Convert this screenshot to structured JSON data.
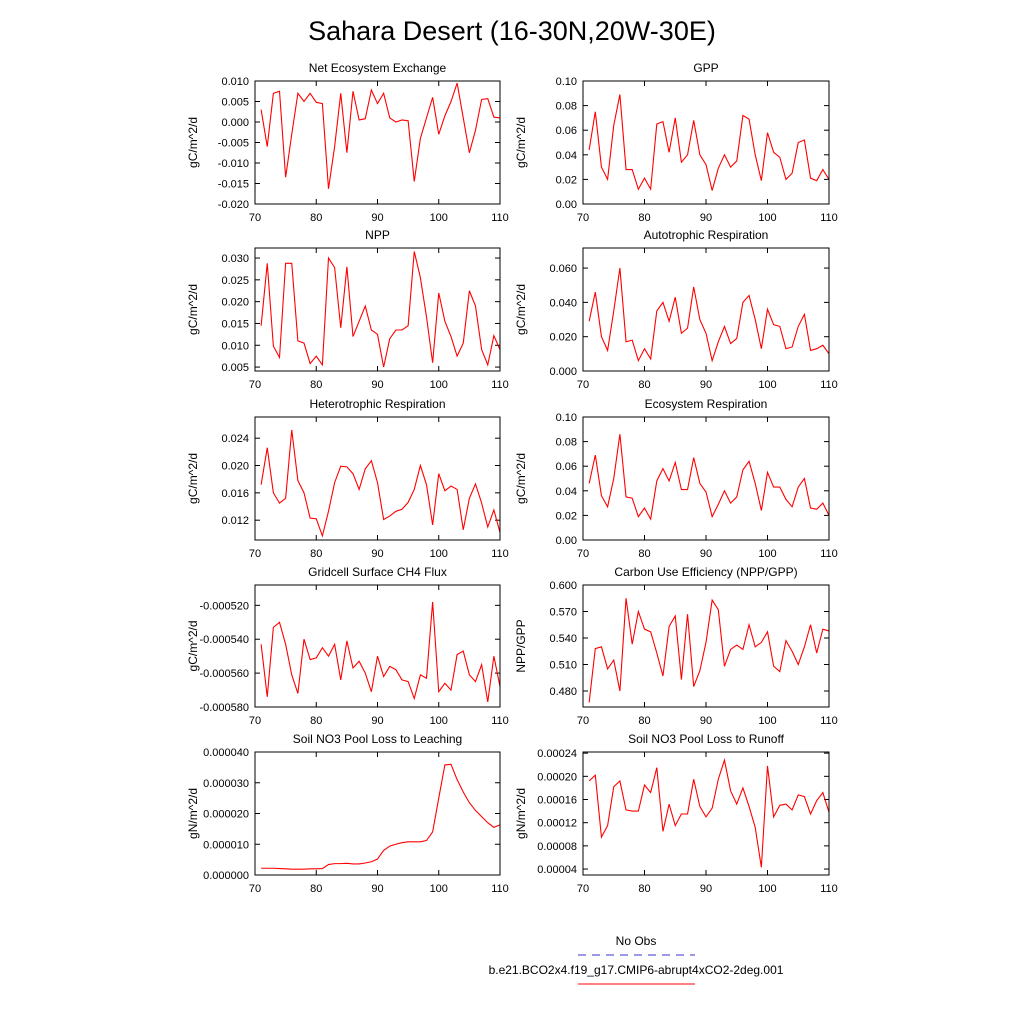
{
  "title": "Sahara Desert (16-30N,20W-30E)",
  "legend": [
    {
      "name": "No Obs",
      "color": "#3333cc",
      "dashed": true
    },
    {
      "name": "b.e21.BCO2x4.f19_g17.CMIP6-abrupt4xCO2-2deg.001",
      "color": "#ff0000",
      "dashed": false
    }
  ],
  "chart_data": [
    {
      "type": "line",
      "title": "Net Ecosystem Exchange",
      "ylabel": "gC/m^2/d",
      "color": "#ff0000",
      "x": [
        71,
        72,
        73,
        74,
        75,
        76,
        77,
        78,
        79,
        80,
        81,
        82,
        83,
        84,
        85,
        86,
        87,
        88,
        89,
        90,
        91,
        92,
        93,
        94,
        95,
        96,
        97,
        98,
        99,
        100,
        101,
        102,
        103,
        104,
        105,
        106,
        107,
        108,
        109,
        110
      ],
      "values": [
        0.003,
        -0.006,
        0.007,
        0.0075,
        -0.0135,
        -0.003,
        0.007,
        0.005,
        0.007,
        0.0048,
        0.0045,
        -0.0163,
        -0.006,
        0.007,
        -0.0075,
        0.0075,
        0.0005,
        0.0008,
        0.0078,
        0.0045,
        0.007,
        0.001,
        0.0,
        0.0005,
        0.0003,
        -0.0145,
        -0.004,
        0.001,
        0.006,
        -0.003,
        0.0015,
        0.005,
        0.0095,
        0.001,
        -0.0075,
        -0.002,
        0.0055,
        0.0057,
        0.0012,
        0.001
      ],
      "xlim": [
        70,
        110
      ],
      "xticks": [
        70,
        80,
        90,
        100,
        110
      ],
      "ylim": [
        -0.02,
        0.01
      ],
      "yticks": [
        {
          "value": -0.02,
          "label": "-0.020"
        },
        -0.015,
        {
          "value": -0.01,
          "label": "-0.010"
        },
        -0.005,
        {
          "value": 0,
          "label": "0.000"
        },
        0.005,
        {
          "value": 0.01,
          "label": "0.010"
        }
      ]
    },
    {
      "type": "line",
      "title": "GPP",
      "ylabel": "gC/m^2/d",
      "color": "#ff0000",
      "x": [
        71,
        72,
        73,
        74,
        75,
        76,
        77,
        78,
        79,
        80,
        81,
        82,
        83,
        84,
        85,
        86,
        87,
        88,
        89,
        90,
        91,
        92,
        93,
        94,
        95,
        96,
        97,
        98,
        99,
        100,
        101,
        102,
        103,
        104,
        105,
        106,
        107,
        108,
        109,
        110
      ],
      "values": [
        0.044,
        0.075,
        0.03,
        0.02,
        0.064,
        0.089,
        0.028,
        0.028,
        0.012,
        0.021,
        0.012,
        0.065,
        0.067,
        0.042,
        0.07,
        0.034,
        0.04,
        0.068,
        0.04,
        0.032,
        0.011,
        0.029,
        0.04,
        0.03,
        0.035,
        0.072,
        0.069,
        0.04,
        0.019,
        0.058,
        0.042,
        0.038,
        0.02,
        0.025,
        0.05,
        0.052,
        0.021,
        0.019,
        0.028,
        0.02
      ],
      "xlim": [
        70,
        110
      ],
      "xticks": [
        70,
        80,
        90,
        100,
        110
      ],
      "ylim": [
        0,
        0.1
      ],
      "yticks": [
        {
          "value": 0,
          "label": "0.00"
        },
        0.02,
        0.04,
        0.06,
        0.08,
        {
          "value": 0.1,
          "label": "0.10"
        }
      ]
    },
    {
      "type": "line",
      "title": "NPP",
      "ylabel": "gC/m^2/d",
      "color": "#ff0000",
      "x": [
        71,
        72,
        73,
        74,
        75,
        76,
        77,
        78,
        79,
        80,
        81,
        82,
        83,
        84,
        85,
        86,
        87,
        88,
        89,
        90,
        91,
        92,
        93,
        94,
        95,
        96,
        97,
        98,
        99,
        100,
        101,
        102,
        103,
        104,
        105,
        106,
        107,
        108,
        109,
        110
      ],
      "values": [
        0.0145,
        0.0288,
        0.0098,
        0.0072,
        0.0288,
        0.0288,
        0.011,
        0.0105,
        0.0058,
        0.0075,
        0.0055,
        0.03,
        0.0278,
        0.014,
        0.028,
        0.012,
        0.0155,
        0.019,
        0.0135,
        0.0125,
        0.005,
        0.0115,
        0.0135,
        0.0135,
        0.0145,
        0.0315,
        0.0255,
        0.0165,
        0.006,
        0.022,
        0.0155,
        0.012,
        0.0075,
        0.0105,
        0.0225,
        0.019,
        0.009,
        0.0055,
        0.0122,
        0.009
      ],
      "xlim": [
        70,
        110
      ],
      "xticks": [
        70,
        80,
        90,
        100,
        110
      ],
      "ylim": [
        0.0041,
        0.0323
      ],
      "yticks": [
        0.005,
        {
          "value": 0.01,
          "label": "0.010"
        },
        0.015,
        {
          "value": 0.02,
          "label": "0.020"
        },
        0.025,
        {
          "value": 0.03,
          "label": "0.030"
        }
      ]
    },
    {
      "type": "line",
      "title": "Autotrophic Respiration",
      "ylabel": "gC/m^2/d",
      "color": "#ff0000",
      "x": [
        71,
        72,
        73,
        74,
        75,
        76,
        77,
        78,
        79,
        80,
        81,
        82,
        83,
        84,
        85,
        86,
        87,
        88,
        89,
        90,
        91,
        92,
        93,
        94,
        95,
        96,
        97,
        98,
        99,
        100,
        101,
        102,
        103,
        104,
        105,
        106,
        107,
        108,
        109,
        110
      ],
      "values": [
        0.029,
        0.046,
        0.02,
        0.012,
        0.035,
        0.06,
        0.017,
        0.018,
        0.006,
        0.013,
        0.007,
        0.035,
        0.04,
        0.029,
        0.043,
        0.022,
        0.025,
        0.049,
        0.03,
        0.022,
        0.006,
        0.017,
        0.026,
        0.016,
        0.019,
        0.04,
        0.044,
        0.03,
        0.013,
        0.036,
        0.027,
        0.026,
        0.013,
        0.014,
        0.026,
        0.033,
        0.012,
        0.013,
        0.015,
        0.01
      ],
      "xlim": [
        70,
        110
      ],
      "xticks": [
        70,
        80,
        90,
        100,
        110
      ],
      "ylim": [
        0,
        0.0717
      ],
      "yticks": [
        {
          "value": 0,
          "label": "0.000"
        },
        {
          "value": 0.02,
          "label": "0.020"
        },
        {
          "value": 0.04,
          "label": "0.040"
        },
        {
          "value": 0.06,
          "label": "0.060"
        }
      ]
    },
    {
      "type": "line",
      "title": "Heterotrophic Respiration",
      "ylabel": "gC/m^2/d",
      "color": "#ff0000",
      "x": [
        71,
        72,
        73,
        74,
        75,
        76,
        77,
        78,
        79,
        80,
        81,
        82,
        83,
        84,
        85,
        86,
        87,
        88,
        89,
        90,
        91,
        92,
        93,
        94,
        95,
        96,
        97,
        98,
        99,
        100,
        101,
        102,
        103,
        104,
        105,
        106,
        107,
        108,
        109,
        110
      ],
      "values": [
        0.0172,
        0.0226,
        0.016,
        0.0145,
        0.0152,
        0.0252,
        0.0178,
        0.016,
        0.0123,
        0.0122,
        0.0097,
        0.0133,
        0.0175,
        0.0199,
        0.0198,
        0.0188,
        0.0165,
        0.0195,
        0.0207,
        0.0175,
        0.0121,
        0.0126,
        0.0133,
        0.0136,
        0.0146,
        0.0165,
        0.02,
        0.0172,
        0.0113,
        0.0188,
        0.0163,
        0.017,
        0.0165,
        0.0106,
        0.0152,
        0.0173,
        0.0145,
        0.011,
        0.0135,
        0.0102
      ],
      "xlim": [
        70,
        110
      ],
      "xticks": [
        70,
        80,
        90,
        100,
        110
      ],
      "ylim": [
        0.0091,
        0.0271
      ],
      "yticks": [
        0.012,
        0.016,
        {
          "value": 0.02,
          "label": "0.020"
        },
        0.024
      ]
    },
    {
      "type": "line",
      "title": "Ecosystem Respiration",
      "ylabel": "gC/m^2/d",
      "color": "#ff0000",
      "x": [
        71,
        72,
        73,
        74,
        75,
        76,
        77,
        78,
        79,
        80,
        81,
        82,
        83,
        84,
        85,
        86,
        87,
        88,
        89,
        90,
        91,
        92,
        93,
        94,
        95,
        96,
        97,
        98,
        99,
        100,
        101,
        102,
        103,
        104,
        105,
        106,
        107,
        108,
        109,
        110
      ],
      "values": [
        0.046,
        0.069,
        0.036,
        0.027,
        0.05,
        0.086,
        0.035,
        0.034,
        0.019,
        0.026,
        0.017,
        0.048,
        0.058,
        0.048,
        0.063,
        0.041,
        0.041,
        0.067,
        0.046,
        0.039,
        0.019,
        0.029,
        0.04,
        0.03,
        0.035,
        0.057,
        0.064,
        0.046,
        0.024,
        0.055,
        0.043,
        0.043,
        0.033,
        0.027,
        0.043,
        0.05,
        0.026,
        0.025,
        0.03,
        0.02
      ],
      "xlim": [
        70,
        110
      ],
      "xticks": [
        70,
        80,
        90,
        100,
        110
      ],
      "ylim": [
        0,
        0.1
      ],
      "yticks": [
        {
          "value": 0,
          "label": "0.00"
        },
        0.02,
        0.04,
        0.06,
        0.08,
        {
          "value": 0.1,
          "label": "0.10"
        }
      ]
    },
    {
      "type": "line",
      "title": "Gridcell Surface CH4 Flux",
      "ylabel": "gC/m^2/d",
      "color": "#ff0000",
      "x": [
        71,
        72,
        73,
        74,
        75,
        76,
        77,
        78,
        79,
        80,
        81,
        82,
        83,
        84,
        85,
        86,
        87,
        88,
        89,
        90,
        91,
        92,
        93,
        94,
        95,
        96,
        97,
        98,
        99,
        100,
        101,
        102,
        103,
        104,
        105,
        106,
        107,
        108,
        109,
        110
      ],
      "values": [
        -0.000543,
        -0.000574,
        -0.000533,
        -0.00053,
        -0.000543,
        -0.000561,
        -0.000572,
        -0.00054,
        -0.000552,
        -0.000551,
        -0.000545,
        -0.00055,
        -0.000543,
        -0.000564,
        -0.000541,
        -0.000557,
        -0.000553,
        -0.00056,
        -0.000571,
        -0.00055,
        -0.000562,
        -0.000556,
        -0.000558,
        -0.000564,
        -0.000565,
        -0.000575,
        -0.000561,
        -0.000563,
        -0.000518,
        -0.000571,
        -0.000566,
        -0.00057,
        -0.000549,
        -0.000547,
        -0.000561,
        -0.000565,
        -0.000555,
        -0.000577,
        -0.00055,
        -0.000568
      ],
      "xlim": [
        70,
        110
      ],
      "xticks": [
        70,
        80,
        90,
        100,
        110
      ],
      "ylim": [
        -0.00058,
        -0.000508
      ],
      "yticks": [
        {
          "value": -0.00058,
          "label": "-0.000580"
        },
        {
          "value": -0.00056,
          "label": "-0.000560"
        },
        {
          "value": -0.00054,
          "label": "-0.000540"
        },
        {
          "value": -0.00052,
          "label": "-0.000520"
        }
      ]
    },
    {
      "type": "line",
      "title": "Carbon Use Efficiency (NPP/GPP)",
      "ylabel": "NPP/GPP",
      "color": "#ff0000",
      "x": [
        71,
        72,
        73,
        74,
        75,
        76,
        77,
        78,
        79,
        80,
        81,
        82,
        83,
        84,
        85,
        86,
        87,
        88,
        89,
        90,
        91,
        92,
        93,
        94,
        95,
        96,
        97,
        98,
        99,
        100,
        101,
        102,
        103,
        104,
        105,
        106,
        107,
        108,
        109,
        110
      ],
      "values": [
        0.467,
        0.528,
        0.53,
        0.505,
        0.515,
        0.48,
        0.585,
        0.533,
        0.57,
        0.55,
        0.547,
        0.523,
        0.497,
        0.553,
        0.565,
        0.493,
        0.567,
        0.485,
        0.503,
        0.535,
        0.583,
        0.572,
        0.508,
        0.527,
        0.532,
        0.527,
        0.555,
        0.53,
        0.535,
        0.547,
        0.508,
        0.502,
        0.537,
        0.525,
        0.51,
        0.53,
        0.555,
        0.523,
        0.55,
        0.548
      ],
      "xlim": [
        70,
        110
      ],
      "xticks": [
        70,
        80,
        90,
        100,
        110
      ],
      "ylim": [
        0.4619,
        0.6
      ],
      "yticks": [
        {
          "value": 0.48,
          "label": "0.480"
        },
        {
          "value": 0.51,
          "label": "0.510"
        },
        {
          "value": 0.54,
          "label": "0.540"
        },
        {
          "value": 0.57,
          "label": "0.570"
        },
        {
          "value": 0.6,
          "label": "0.600"
        }
      ]
    },
    {
      "type": "line",
      "title": "Soil NO3 Pool Loss to Leaching",
      "ylabel": "gN/m^2/d",
      "color": "#ff0000",
      "x": [
        71,
        72,
        73,
        74,
        75,
        76,
        77,
        78,
        79,
        80,
        81,
        82,
        83,
        84,
        85,
        86,
        87,
        88,
        89,
        90,
        91,
        92,
        93,
        94,
        95,
        96,
        97,
        98,
        99,
        100,
        101,
        102,
        103,
        104,
        105,
        106,
        107,
        108,
        109,
        110
      ],
      "values": [
        2.2e-06,
        2.2e-06,
        2.2e-06,
        2.1e-06,
        2e-06,
        1.9e-06,
        1.9e-06,
        1.9e-06,
        2e-06,
        2e-06,
        2.1e-06,
        3.4e-06,
        3.7e-06,
        3.7e-06,
        3.8e-06,
        3.6e-06,
        3.6e-06,
        3.9e-06,
        4.3e-06,
        5.2e-06,
        8e-06,
        9.4e-06,
        1e-05,
        1.05e-05,
        1.08e-05,
        1.08e-05,
        1.08e-05,
        1.12e-05,
        1.4e-05,
        2.5e-05,
        3.58e-05,
        3.6e-05,
        3.1e-05,
        2.7e-05,
        2.35e-05,
        2.1e-05,
        1.9e-05,
        1.7e-05,
        1.55e-05,
        1.63e-05
      ],
      "xlim": [
        70,
        110
      ],
      "xticks": [
        70,
        80,
        90,
        100,
        110
      ],
      "ylim": [
        0,
        4e-05
      ],
      "yticks": [
        {
          "value": 0,
          "label": "0.000000"
        },
        {
          "value": 1e-05,
          "label": "0.000010"
        },
        {
          "value": 2e-05,
          "label": "0.000020"
        },
        {
          "value": 3e-05,
          "label": "0.000030"
        },
        {
          "value": 4e-05,
          "label": "0.000040"
        }
      ]
    },
    {
      "type": "line",
      "title": "Soil NO3 Pool Loss to Runoff",
      "ylabel": "gN/m^2/d",
      "color": "#ff0000",
      "x": [
        71,
        72,
        73,
        74,
        75,
        76,
        77,
        78,
        79,
        80,
        81,
        82,
        83,
        84,
        85,
        86,
        87,
        88,
        89,
        90,
        91,
        92,
        93,
        94,
        95,
        96,
        97,
        98,
        99,
        100,
        101,
        102,
        103,
        104,
        105,
        106,
        107,
        108,
        109,
        110
      ],
      "values": [
        0.000192,
        0.000202,
        9.5e-05,
        0.000115,
        0.000182,
        0.000192,
        0.000142,
        0.00014,
        0.00014,
        0.000185,
        0.000172,
        0.000215,
        0.000105,
        0.000152,
        0.000115,
        0.000135,
        0.000135,
        0.000195,
        0.000148,
        0.00013,
        0.000145,
        0.000195,
        0.000228,
        0.000175,
        0.000152,
        0.00018,
        0.000148,
        0.000112,
        4.3e-05,
        0.000218,
        0.00013,
        0.00015,
        0.000152,
        0.000142,
        0.000168,
        0.000165,
        0.000135,
        0.000158,
        0.000172,
        0.000138
      ],
      "xlim": [
        70,
        110
      ],
      "xticks": [
        70,
        80,
        90,
        100,
        110
      ],
      "ylim": [
        2.97e-05,
        0.000242
      ],
      "yticks": [
        4e-05,
        8e-05,
        0.00012,
        0.00016,
        {
          "value": 0.0002,
          "label": "0.00020"
        },
        0.00024
      ]
    }
  ]
}
